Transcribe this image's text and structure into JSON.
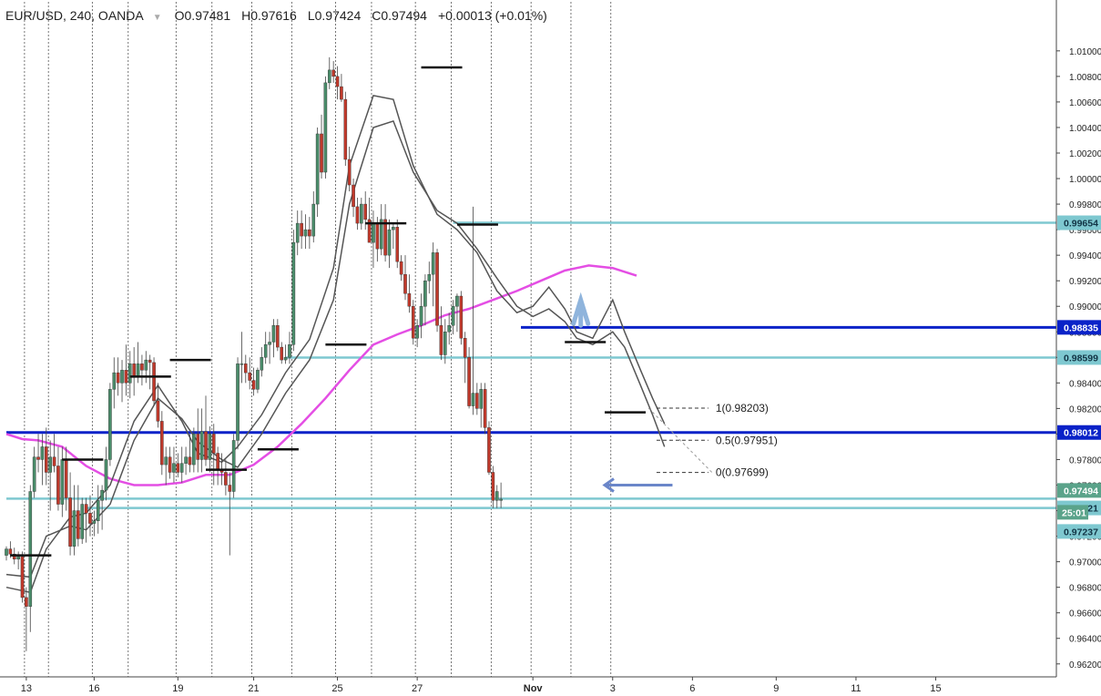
{
  "header": {
    "symbol": "EUR/USD, 240, OANDA",
    "open": "O0.97481",
    "high": "H0.97616",
    "low": "L0.97424",
    "close": "C0.97494",
    "change": "+0.00013 (+0.01%)"
  },
  "colors": {
    "up": "#4a8c6a",
    "down": "#c0392b",
    "ma_fast": "#555555",
    "ma_slow": "#e44ee4",
    "level_dark": "#0a22c8",
    "level_light": "#7ec8d0",
    "arrow": "#6b86c9",
    "arrow_light": "#8fb4dc"
  },
  "chart_data": {
    "type": "candlestick",
    "ylim": [
      0.9605,
      1.0118
    ],
    "y_ticks": [
      "1.01000",
      "1.00800",
      "1.00600",
      "1.00400",
      "1.00200",
      "1.00000",
      "0.99800",
      "0.99600",
      "0.99400",
      "0.99200",
      "0.99000",
      "0.98800",
      "0.98600",
      "0.98400",
      "0.98200",
      "0.98000",
      "0.97800",
      "0.97600",
      "0.97400",
      "0.97200",
      "0.97000",
      "0.96800",
      "0.96600",
      "0.96400",
      "0.96200"
    ],
    "y_tick_values": [
      1.01,
      1.008,
      1.006,
      1.004,
      1.002,
      1.0,
      0.998,
      0.996,
      0.994,
      0.992,
      0.99,
      0.988,
      0.986,
      0.984,
      0.982,
      0.98,
      0.978,
      0.976,
      0.974,
      0.972,
      0.97,
      0.968,
      0.966,
      0.964,
      0.962
    ],
    "x_ticks": [
      "13",
      "16",
      "19",
      "21",
      "25",
      "27",
      "Nov",
      "3",
      "6",
      "9",
      "11",
      "15"
    ],
    "x_tick_bars": [
      5,
      22,
      43,
      62,
      83,
      103,
      132,
      152,
      172,
      193,
      213,
      233
    ],
    "bar_count": 252,
    "session_breaks": [
      5,
      11,
      22,
      31,
      43,
      52,
      62,
      72,
      83,
      92,
      103,
      112,
      122,
      132,
      142,
      152
    ],
    "candles": [
      [
        0.9705,
        0.9712,
        0.9701,
        0.971
      ],
      [
        0.971,
        0.9716,
        0.9703,
        0.9706
      ],
      [
        0.9706,
        0.9711,
        0.9698,
        0.9702
      ],
      [
        0.9702,
        0.9708,
        0.9694,
        0.9704
      ],
      [
        0.9704,
        0.9708,
        0.9668,
        0.9672
      ],
      [
        0.9672,
        0.968,
        0.963,
        0.9665
      ],
      [
        0.9665,
        0.976,
        0.9645,
        0.9755
      ],
      [
        0.9755,
        0.979,
        0.975,
        0.9782
      ],
      [
        0.9782,
        0.98,
        0.977,
        0.978
      ],
      [
        0.978,
        0.98,
        0.976,
        0.979
      ],
      [
        0.979,
        0.9805,
        0.976,
        0.977
      ],
      [
        0.977,
        0.9795,
        0.974,
        0.9782
      ],
      [
        0.9782,
        0.98,
        0.977,
        0.9775
      ],
      [
        0.9775,
        0.979,
        0.974,
        0.9745
      ],
      [
        0.9745,
        0.979,
        0.9735,
        0.978
      ],
      [
        0.978,
        0.979,
        0.974,
        0.975
      ],
      [
        0.975,
        0.977,
        0.9705,
        0.9712
      ],
      [
        0.9712,
        0.976,
        0.9705,
        0.974
      ],
      [
        0.974,
        0.976,
        0.9712,
        0.9718
      ],
      [
        0.9718,
        0.975,
        0.9714,
        0.9745
      ],
      [
        0.9745,
        0.975,
        0.9715,
        0.9738
      ],
      [
        0.9738,
        0.9752,
        0.972,
        0.973
      ],
      [
        0.973,
        0.974,
        0.972,
        0.9732
      ],
      [
        0.9732,
        0.976,
        0.9722,
        0.9748
      ],
      [
        0.9748,
        0.976,
        0.9725,
        0.9756
      ],
      [
        0.9756,
        0.979,
        0.9748,
        0.978
      ],
      [
        0.978,
        0.984,
        0.9775,
        0.9835
      ],
      [
        0.9835,
        0.986,
        0.982,
        0.9848
      ],
      [
        0.9848,
        0.986,
        0.983,
        0.984
      ],
      [
        0.984,
        0.9858,
        0.9825,
        0.985
      ],
      [
        0.985,
        0.987,
        0.983,
        0.984
      ],
      [
        0.984,
        0.9865,
        0.9828,
        0.9855
      ],
      [
        0.9855,
        0.9868,
        0.983,
        0.9845
      ],
      [
        0.9845,
        0.9872,
        0.984,
        0.9855
      ],
      [
        0.9855,
        0.9862,
        0.9838,
        0.985
      ],
      [
        0.985,
        0.9865,
        0.984,
        0.9858
      ],
      [
        0.9858,
        0.9862,
        0.9835,
        0.9856
      ],
      [
        0.9856,
        0.986,
        0.9822,
        0.9826
      ],
      [
        0.9826,
        0.984,
        0.9805,
        0.981
      ],
      [
        0.981,
        0.9818,
        0.9768,
        0.9776
      ],
      [
        0.9776,
        0.979,
        0.976,
        0.9782
      ],
      [
        0.9782,
        0.979,
        0.9765,
        0.977
      ],
      [
        0.977,
        0.979,
        0.9762,
        0.9777
      ],
      [
        0.9777,
        0.9785,
        0.9766,
        0.977
      ],
      [
        0.977,
        0.979,
        0.9762,
        0.9777
      ],
      [
        0.9777,
        0.979,
        0.9768,
        0.9782
      ],
      [
        0.9782,
        0.98,
        0.977,
        0.9776
      ],
      [
        0.9776,
        0.9805,
        0.977,
        0.98
      ],
      [
        0.98,
        0.982,
        0.977,
        0.978
      ],
      [
        0.978,
        0.982,
        0.977,
        0.9802
      ],
      [
        0.9802,
        0.983,
        0.9775,
        0.978
      ],
      [
        0.978,
        0.9806,
        0.977,
        0.98
      ],
      [
        0.98,
        0.9808,
        0.976,
        0.9785
      ],
      [
        0.9785,
        0.979,
        0.976,
        0.9772
      ],
      [
        0.9772,
        0.9785,
        0.976,
        0.977
      ],
      [
        0.977,
        0.978,
        0.9752,
        0.976
      ],
      [
        0.976,
        0.977,
        0.9705,
        0.9755
      ],
      [
        0.9755,
        0.98,
        0.975,
        0.9795
      ],
      [
        0.9795,
        0.986,
        0.9788,
        0.9855
      ],
      [
        0.9855,
        0.988,
        0.984,
        0.9855
      ],
      [
        0.9855,
        0.9862,
        0.984,
        0.9848
      ],
      [
        0.9848,
        0.986,
        0.9835,
        0.9842
      ],
      [
        0.9842,
        0.9852,
        0.983,
        0.9835
      ],
      [
        0.9835,
        0.9852,
        0.9832,
        0.985
      ],
      [
        0.985,
        0.9868,
        0.9845,
        0.986
      ],
      [
        0.986,
        0.988,
        0.9855,
        0.987
      ],
      [
        0.987,
        0.988,
        0.9855,
        0.9872
      ],
      [
        0.9872,
        0.989,
        0.986,
        0.9885
      ],
      [
        0.9885,
        0.989,
        0.9865,
        0.9868
      ],
      [
        0.9868,
        0.9872,
        0.9855,
        0.9858
      ],
      [
        0.9858,
        0.987,
        0.9855,
        0.986
      ],
      [
        0.986,
        0.988,
        0.9855,
        0.987
      ],
      [
        0.987,
        0.996,
        0.9865,
        0.995
      ],
      [
        0.995,
        0.9975,
        0.994,
        0.9965
      ],
      [
        0.9965,
        0.9975,
        0.9945,
        0.9955
      ],
      [
        0.9955,
        0.9972,
        0.9945,
        0.996
      ],
      [
        0.996,
        0.997,
        0.9945,
        0.9955
      ],
      [
        0.9955,
        0.999,
        0.995,
        0.998
      ],
      [
        0.998,
        1.004,
        0.997,
        1.0035
      ],
      [
        1.0035,
        1.005,
        1.0,
        1.0005
      ],
      [
        1.0005,
        1.008,
        1.0,
        1.0075
      ],
      [
        1.0075,
        1.0095,
        1.007,
        1.0085
      ],
      [
        1.0085,
        1.0092,
        1.0075,
        1.008
      ],
      [
        1.008,
        1.0088,
        1.0062,
        1.0072
      ],
      [
        1.0072,
        1.0082,
        1.006,
        1.0062
      ],
      [
        1.0062,
        1.0068,
        1.001,
        1.0015
      ],
      [
        1.0015,
        1.0025,
        0.999,
        0.9995
      ],
      [
        0.9995,
        1.0,
        0.997,
        0.9978
      ],
      [
        0.9978,
        0.9985,
        0.996,
        0.9965
      ],
      [
        0.9965,
        0.9985,
        0.996,
        0.998
      ],
      [
        0.998,
        0.999,
        0.996,
        0.9968
      ],
      [
        0.9968,
        0.9985,
        0.995,
        0.995
      ],
      [
        0.995,
        0.9975,
        0.993,
        0.9965
      ],
      [
        0.9965,
        0.997,
        0.9935,
        0.9945
      ],
      [
        0.9945,
        0.998,
        0.994,
        0.9968
      ],
      [
        0.9968,
        0.998,
        0.9935,
        0.994
      ],
      [
        0.994,
        0.9968,
        0.993,
        0.996
      ],
      [
        0.996,
        0.9965,
        0.9945,
        0.9962
      ],
      [
        0.9962,
        0.9968,
        0.993,
        0.9935
      ],
      [
        0.9935,
        0.994,
        0.992,
        0.9925
      ],
      [
        0.9925,
        0.994,
        0.9905,
        0.991
      ],
      [
        0.991,
        0.9925,
        0.9895,
        0.99
      ],
      [
        0.99,
        0.9905,
        0.987,
        0.9875
      ],
      [
        0.9875,
        0.989,
        0.9868,
        0.9885
      ],
      [
        0.9885,
        0.991,
        0.9875,
        0.99
      ],
      [
        0.99,
        0.9925,
        0.9885,
        0.992
      ],
      [
        0.992,
        0.9935,
        0.991,
        0.9925
      ],
      [
        0.9925,
        0.995,
        0.99,
        0.9942
      ],
      [
        0.9942,
        0.9945,
        0.988,
        0.9885
      ],
      [
        0.9885,
        0.99,
        0.9858,
        0.9862
      ],
      [
        0.9862,
        0.989,
        0.9855,
        0.988
      ],
      [
        0.988,
        0.9895,
        0.987,
        0.9885
      ],
      [
        0.9885,
        0.9905,
        0.9878,
        0.99
      ],
      [
        0.99,
        0.991,
        0.988,
        0.9908
      ],
      [
        0.9908,
        0.9912,
        0.987,
        0.9875
      ],
      [
        0.9875,
        0.988,
        0.984,
        0.986
      ],
      [
        0.986,
        0.9868,
        0.982,
        0.9822
      ],
      [
        0.9822,
        0.9978,
        0.9815,
        0.9832
      ],
      [
        0.9832,
        0.984,
        0.9815,
        0.982
      ],
      [
        0.982,
        0.984,
        0.9805,
        0.9835
      ],
      [
        0.9835,
        0.984,
        0.98,
        0.9805
      ],
      [
        0.9805,
        0.981,
        0.9768,
        0.977
      ],
      [
        0.977,
        0.9775,
        0.9742,
        0.9748
      ],
      [
        0.9748,
        0.976,
        0.9742,
        0.9755
      ],
      [
        0.9748,
        0.9762,
        0.9742,
        0.9749
      ]
    ],
    "ma_fast": [
      [
        0,
        0.968
      ],
      [
        6,
        0.9676
      ],
      [
        10,
        0.971
      ],
      [
        16,
        0.9735
      ],
      [
        20,
        0.9738
      ],
      [
        26,
        0.976
      ],
      [
        32,
        0.981
      ],
      [
        38,
        0.9838
      ],
      [
        44,
        0.981
      ],
      [
        48,
        0.9785
      ],
      [
        54,
        0.9778
      ],
      [
        58,
        0.979
      ],
      [
        64,
        0.9815
      ],
      [
        70,
        0.9848
      ],
      [
        76,
        0.9874
      ],
      [
        82,
        0.993
      ],
      [
        86,
        1.001
      ],
      [
        92,
        1.0065
      ],
      [
        97,
        1.0062
      ],
      [
        102,
        1.001
      ],
      [
        108,
        0.9972
      ],
      [
        113,
        0.996
      ],
      [
        118,
        0.9942
      ],
      [
        123,
        0.9912
      ],
      [
        128,
        0.9895
      ],
      [
        132,
        0.99
      ],
      [
        136,
        0.9915
      ],
      [
        140,
        0.9898
      ],
      [
        143,
        0.988
      ],
      [
        147,
        0.9875
      ],
      [
        152,
        0.9905
      ],
      [
        155,
        0.988
      ],
      [
        159,
        0.985
      ],
      [
        162,
        0.9828
      ],
      [
        165,
        0.9808
      ]
    ],
    "ma_mid": [
      [
        0,
        0.969
      ],
      [
        6,
        0.9688
      ],
      [
        10,
        0.972
      ],
      [
        16,
        0.9728
      ],
      [
        20,
        0.9725
      ],
      [
        26,
        0.9745
      ],
      [
        32,
        0.9795
      ],
      [
        38,
        0.9828
      ],
      [
        44,
        0.9812
      ],
      [
        48,
        0.9794
      ],
      [
        54,
        0.978
      ],
      [
        58,
        0.9774
      ],
      [
        64,
        0.98
      ],
      [
        70,
        0.9832
      ],
      [
        76,
        0.9858
      ],
      [
        82,
        0.9905
      ],
      [
        86,
        0.998
      ],
      [
        92,
        1.004
      ],
      [
        97,
        1.0045
      ],
      [
        102,
        1.0005
      ],
      [
        108,
        0.9975
      ],
      [
        113,
        0.9965
      ],
      [
        118,
        0.9945
      ],
      [
        123,
        0.9922
      ],
      [
        128,
        0.99
      ],
      [
        132,
        0.9892
      ],
      [
        136,
        0.9898
      ],
      [
        140,
        0.9888
      ],
      [
        143,
        0.9875
      ],
      [
        147,
        0.987
      ],
      [
        152,
        0.988
      ],
      [
        155,
        0.9868
      ],
      [
        159,
        0.9838
      ],
      [
        162,
        0.9815
      ],
      [
        165,
        0.979
      ]
    ],
    "ma_slow": [
      [
        0,
        0.98
      ],
      [
        4,
        0.9796
      ],
      [
        8,
        0.9795
      ],
      [
        14,
        0.979
      ],
      [
        20,
        0.9775
      ],
      [
        26,
        0.9765
      ],
      [
        32,
        0.976
      ],
      [
        38,
        0.976
      ],
      [
        44,
        0.9762
      ],
      [
        50,
        0.9768
      ],
      [
        56,
        0.9768
      ],
      [
        62,
        0.9776
      ],
      [
        68,
        0.979
      ],
      [
        74,
        0.9808
      ],
      [
        80,
        0.9828
      ],
      [
        86,
        0.985
      ],
      [
        92,
        0.987
      ],
      [
        98,
        0.9878
      ],
      [
        104,
        0.9885
      ],
      [
        110,
        0.9893
      ],
      [
        116,
        0.9898
      ],
      [
        122,
        0.9905
      ],
      [
        128,
        0.9912
      ],
      [
        134,
        0.992
      ],
      [
        140,
        0.9928
      ],
      [
        146,
        0.9932
      ],
      [
        152,
        0.993
      ],
      [
        158,
        0.9924
      ]
    ],
    "levels": [
      {
        "value": 0.99654,
        "label": "0.99654",
        "style": "light",
        "from_bar": 112
      },
      {
        "value": 0.98835,
        "label": "0.98835",
        "style": "dark",
        "from_bar": 129
      },
      {
        "value": 0.98599,
        "label": "0.98599",
        "style": "light",
        "from_bar": 70
      },
      {
        "value": 0.98012,
        "label": "0.98012",
        "style": "dark",
        "from_bar": 0
      },
      {
        "value": 0.97494,
        "label": "0.97494",
        "style": "light",
        "from_bar": 0
      },
      {
        "value": 0.97421,
        "label": "0.97421",
        "style": "light",
        "from_bar": 20
      },
      {
        "value": 0.97237,
        "label": "0.97237",
        "style": "none",
        "from_bar": 252
      }
    ],
    "price_tag": {
      "value": 0.97494,
      "label": "0.97494",
      "countdown": "25:01"
    },
    "fib": [
      {
        "ratio": "1",
        "value": 0.98203,
        "label": "1(0.98203)"
      },
      {
        "ratio": "0.5",
        "value": 0.97951,
        "label": "0.5(0.97951)"
      },
      {
        "ratio": "0",
        "value": 0.97699,
        "label": "0(0.97699)"
      }
    ],
    "markers": [
      {
        "bar": 1,
        "value": 0.9705
      },
      {
        "bar": 14,
        "value": 0.978
      },
      {
        "bar": 31,
        "value": 0.9845
      },
      {
        "bar": 41,
        "value": 0.9858
      },
      {
        "bar": 50,
        "value": 0.9772
      },
      {
        "bar": 63,
        "value": 0.9788
      },
      {
        "bar": 80,
        "value": 0.987
      },
      {
        "bar": 90,
        "value": 0.9965
      },
      {
        "bar": 104,
        "value": 1.0087
      },
      {
        "bar": 113,
        "value": 0.9964
      },
      {
        "bar": 140,
        "value": 0.9872
      },
      {
        "bar": 150,
        "value": 0.9817
      }
    ]
  }
}
